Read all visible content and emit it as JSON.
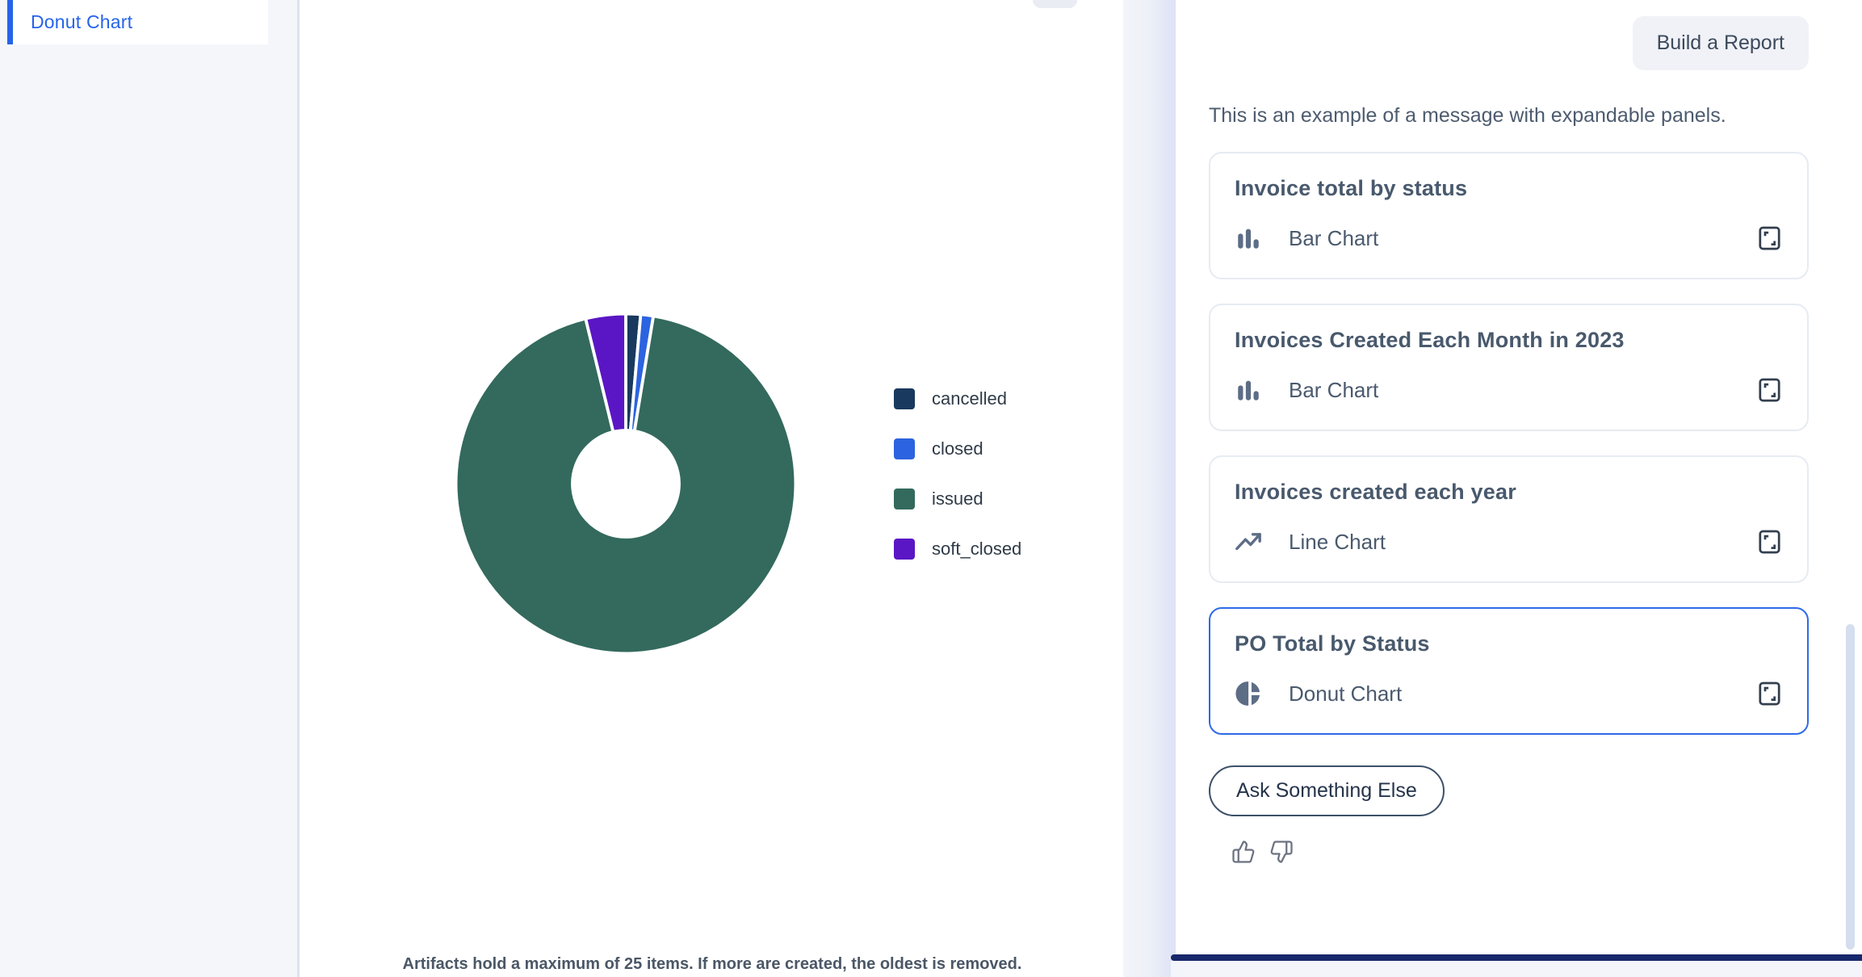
{
  "sidebar": {
    "items": [
      {
        "label": "Donut Chart",
        "selected": true
      }
    ]
  },
  "artifact_panel": {
    "footer_note": "Artifacts hold a maximum of 25 items. If more are created, the oldest is removed."
  },
  "chart_data": {
    "type": "pie",
    "variant": "donut",
    "labels": [
      "cancelled",
      "closed",
      "issued",
      "soft_closed"
    ],
    "values": [
      1.4,
      1.2,
      93.6,
      3.8
    ],
    "unit": "percent (estimated from arc angles; no numeric labels shown in chart)",
    "colors": [
      "#19395e",
      "#2c63e0",
      "#336a5d",
      "#5a16c4"
    ],
    "legend_position": "right",
    "title": "",
    "start_angle": "12 o'clock, clockwise",
    "slice_gap_color": "#ffffff"
  },
  "chat": {
    "user_message": "Build a Report",
    "assistant_message": "This is an example of a message with expandable panels.",
    "panels": [
      {
        "title": "Invoice total by status",
        "type_label": "Bar Chart",
        "icon": "bar-chart-icon",
        "selected": false
      },
      {
        "title": "Invoices Created Each Month in 2023",
        "type_label": "Bar Chart",
        "icon": "bar-chart-icon",
        "selected": false
      },
      {
        "title": "Invoices created each year",
        "type_label": "Line Chart",
        "icon": "line-chart-icon",
        "selected": false
      },
      {
        "title": "PO Total by Status",
        "type_label": "Donut Chart",
        "icon": "donut-chart-icon",
        "selected": true
      }
    ],
    "ask_button_label": "Ask Something Else"
  },
  "colors": {
    "accent_blue": "#2563eb",
    "selected_card_border": "#2e6ae8",
    "input_bar_navy": "#17286b",
    "icon_slate": "#5d6d86",
    "sidebar_bg": "#f4f6fa"
  }
}
